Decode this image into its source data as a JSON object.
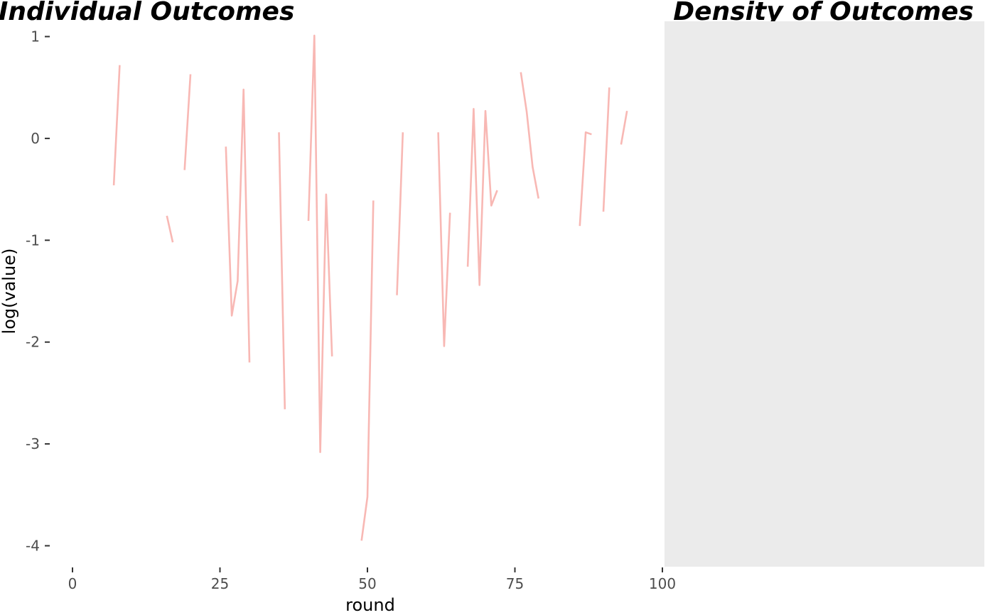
{
  "chart_data": [
    {
      "type": "line",
      "title": "Individual Outcomes",
      "xlabel": "round",
      "ylabel": "log(value)",
      "xlim": [
        0,
        100
      ],
      "ylim": [
        -4.15,
        1.1
      ],
      "xticks": [
        0,
        25,
        50,
        75,
        100
      ],
      "yticks": [
        1,
        0,
        -1,
        -2,
        -3,
        -4
      ],
      "grid": false,
      "color": "#f8b8b4",
      "segments": [
        [
          [
            7,
            -0.46
          ],
          [
            8,
            0.72
          ]
        ],
        [
          [
            16,
            -0.76
          ],
          [
            17,
            -1.02
          ]
        ],
        [
          [
            19,
            -0.31
          ],
          [
            20,
            0.63
          ]
        ],
        [
          [
            26,
            -0.08
          ],
          [
            27,
            -1.74
          ],
          [
            28,
            -1.4
          ],
          [
            29,
            0.48
          ],
          [
            30,
            -2.2
          ]
        ],
        [
          [
            35,
            0.06
          ],
          [
            36,
            -2.66
          ]
        ],
        [
          [
            40,
            -0.81
          ],
          [
            41,
            1.01
          ],
          [
            42,
            -3.08
          ],
          [
            43,
            -0.55
          ],
          [
            44,
            -2.14
          ]
        ],
        [
          [
            49,
            -3.95
          ],
          [
            50,
            -3.52
          ],
          [
            51,
            -0.61
          ]
        ],
        [
          [
            55,
            -1.54
          ],
          [
            56,
            0.06
          ]
        ],
        [
          [
            62,
            0.06
          ],
          [
            63,
            -2.04
          ],
          [
            64,
            -0.73
          ]
        ],
        [
          [
            67,
            -1.26
          ],
          [
            68,
            0.29
          ],
          [
            69,
            -1.44
          ],
          [
            70,
            0.27
          ],
          [
            71,
            -0.66
          ],
          [
            72,
            -0.51
          ]
        ],
        [
          [
            76,
            0.65
          ],
          [
            77,
            0.26
          ],
          [
            78,
            -0.28
          ],
          [
            79,
            -0.59
          ]
        ],
        [
          [
            86,
            -0.86
          ],
          [
            87,
            0.06
          ],
          [
            88,
            0.04
          ]
        ],
        [
          [
            90,
            -0.72
          ],
          [
            91,
            0.5
          ]
        ],
        [
          [
            93,
            -0.06
          ],
          [
            94,
            0.27
          ]
        ]
      ]
    },
    {
      "type": "area",
      "title": "Density of Outcomes",
      "panel_background": "#ebebeb"
    }
  ]
}
